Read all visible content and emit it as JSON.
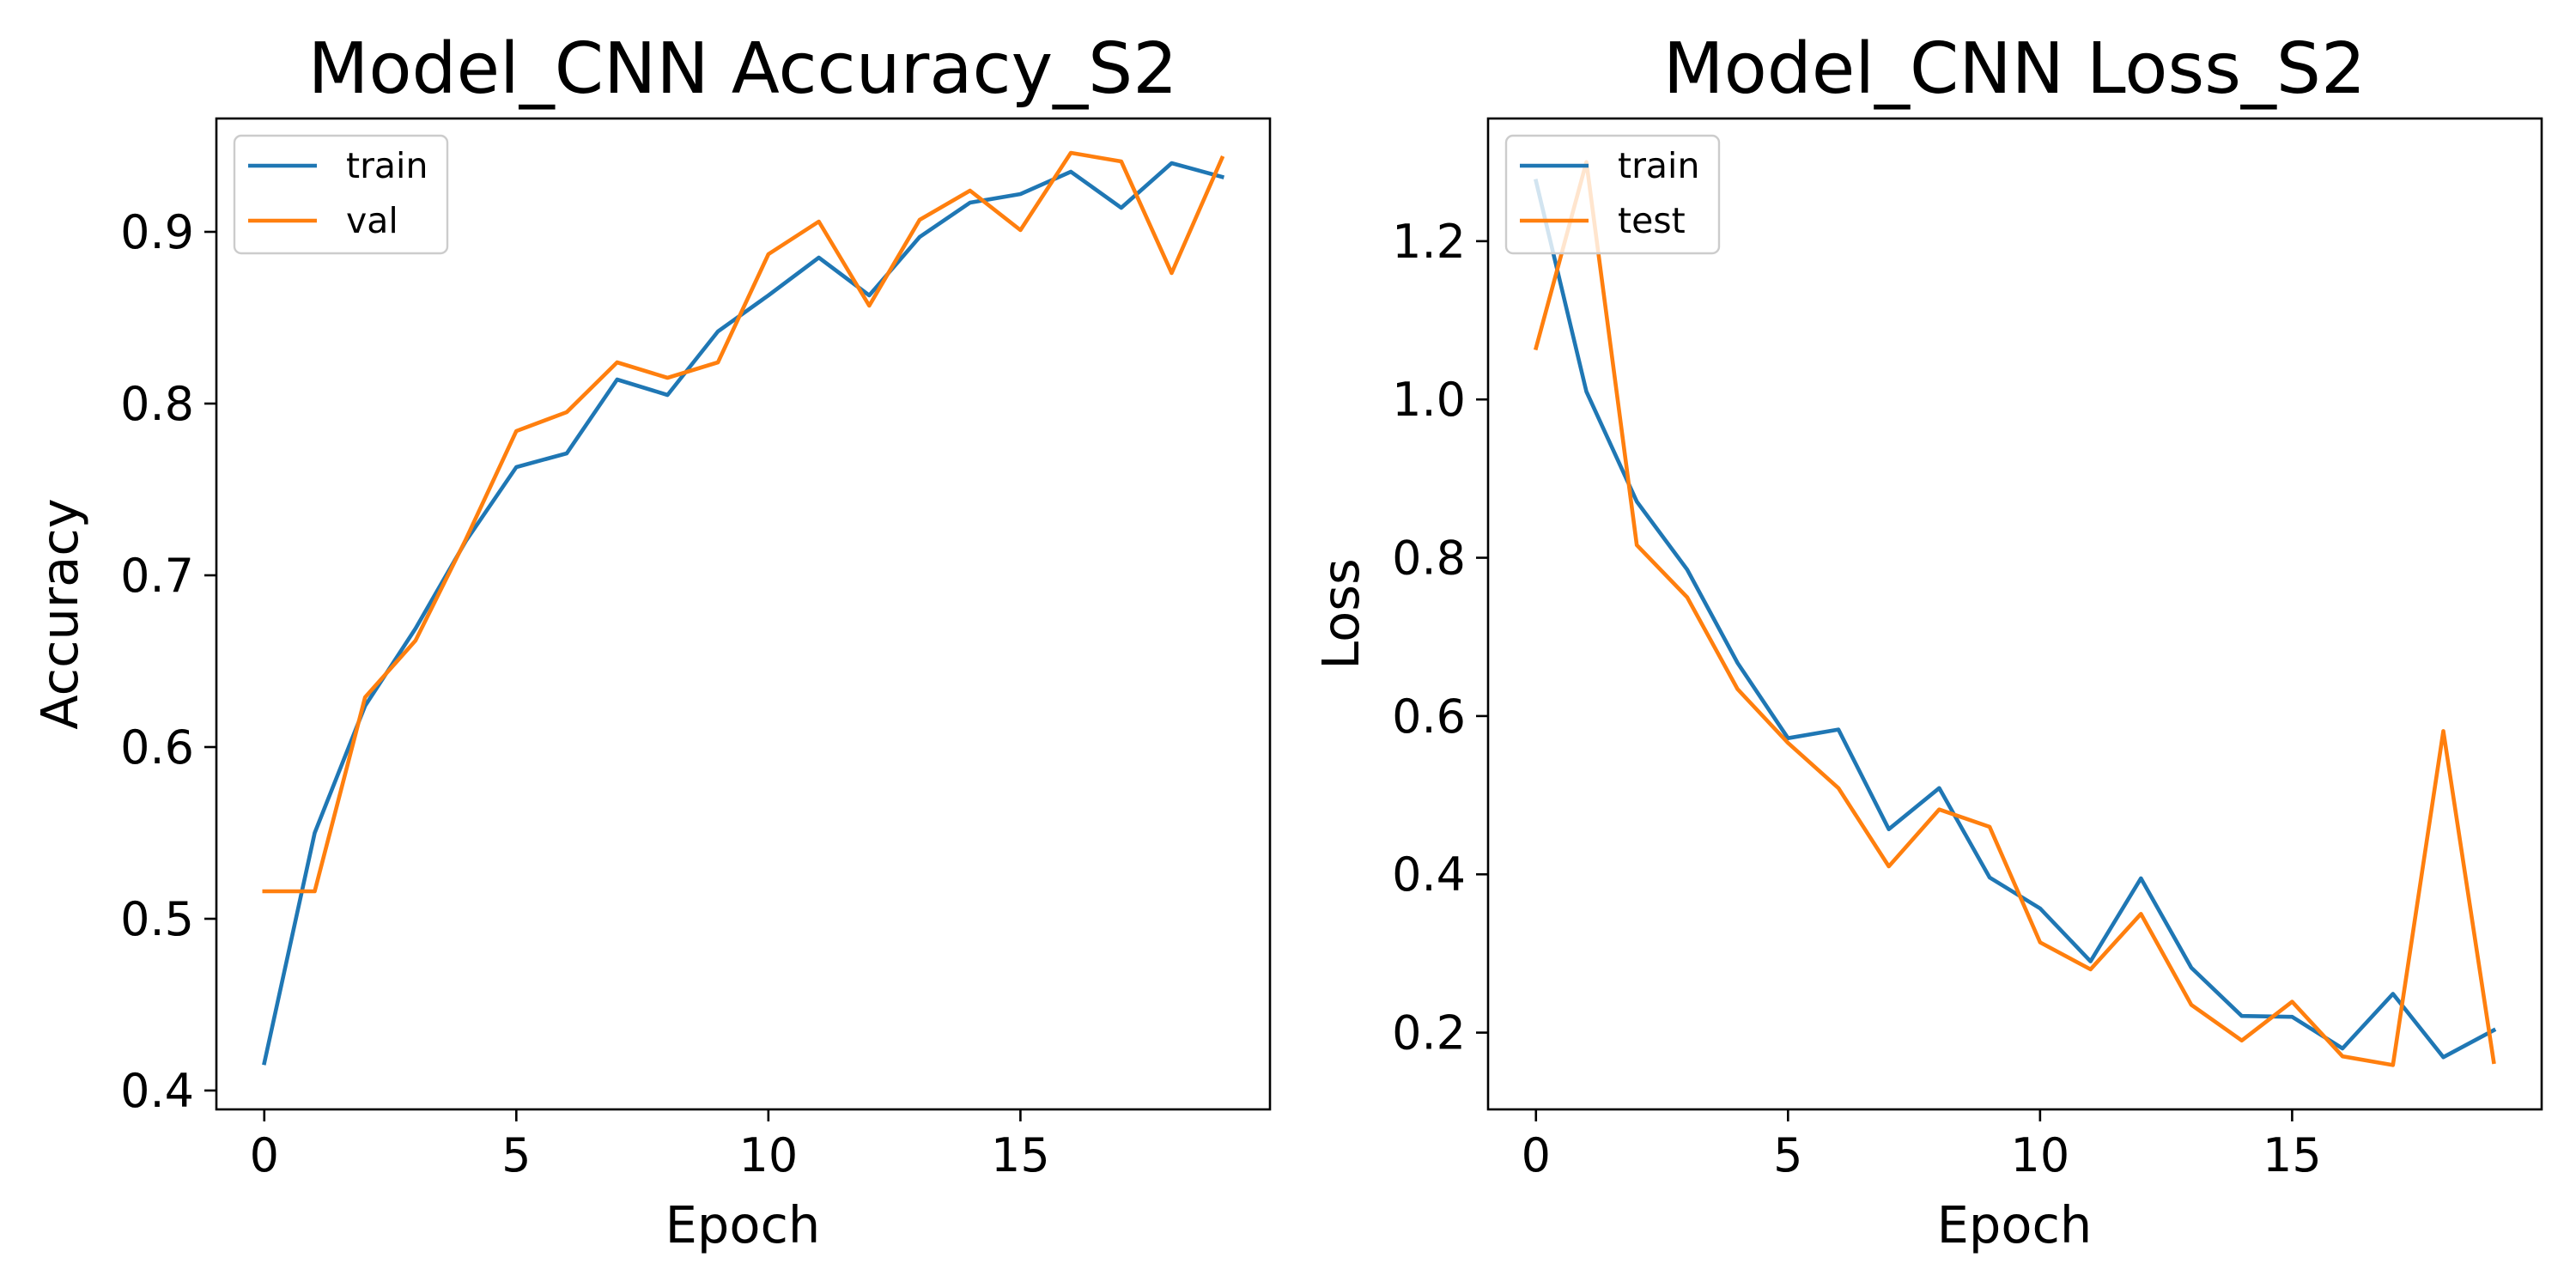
{
  "chart_data": [
    {
      "type": "line",
      "title": "Model_CNN Accuracy_S2",
      "xlabel": "Epoch",
      "ylabel": "Accuracy",
      "xlim": [
        -0.95,
        19.95
      ],
      "ylim": [
        0.389,
        0.966
      ],
      "xticks": [
        0,
        5,
        10,
        15
      ],
      "yticks": [
        0.4,
        0.5,
        0.6,
        0.7,
        0.8,
        0.9
      ],
      "xtick_labels": [
        "0",
        "5",
        "10",
        "15"
      ],
      "ytick_labels": [
        "0.4",
        "0.5",
        "0.6",
        "0.7",
        "0.8",
        "0.9"
      ],
      "legend_position": "upper-left",
      "grid": false,
      "x": [
        0,
        1,
        2,
        3,
        4,
        5,
        6,
        7,
        8,
        9,
        10,
        11,
        12,
        13,
        14,
        15,
        16,
        17,
        18,
        19
      ],
      "series": [
        {
          "name": "train",
          "color": "#1f77b4",
          "values": [
            0.416,
            0.55,
            0.624,
            0.669,
            0.72,
            0.763,
            0.771,
            0.814,
            0.805,
            0.842,
            0.863,
            0.885,
            0.863,
            0.897,
            0.917,
            0.922,
            0.935,
            0.914,
            0.94,
            0.932
          ]
        },
        {
          "name": "val",
          "color": "#ff7f0e",
          "values": [
            0.516,
            0.516,
            0.629,
            0.662,
            0.721,
            0.784,
            0.795,
            0.824,
            0.815,
            0.824,
            0.887,
            0.906,
            0.857,
            0.907,
            0.924,
            0.901,
            0.946,
            0.941,
            0.876,
            0.943
          ]
        }
      ]
    },
    {
      "type": "line",
      "title": "Model_CNN Loss_S2",
      "xlabel": "Epoch",
      "ylabel": "Loss",
      "xlim": [
        -0.95,
        19.95
      ],
      "ylim": [
        0.103,
        1.355
      ],
      "xticks": [
        0,
        5,
        10,
        15
      ],
      "yticks": [
        0.2,
        0.4,
        0.6,
        0.8,
        1.0,
        1.2
      ],
      "xtick_labels": [
        "0",
        "5",
        "10",
        "15"
      ],
      "ytick_labels": [
        "0.2",
        "0.4",
        "0.6",
        "0.8",
        "1.0",
        "1.2"
      ],
      "legend_position": "upper-left",
      "grid": false,
      "x": [
        0,
        1,
        2,
        3,
        4,
        5,
        6,
        7,
        8,
        9,
        10,
        11,
        12,
        13,
        14,
        15,
        16,
        17,
        18,
        19
      ],
      "series": [
        {
          "name": "train",
          "color": "#1f77b4",
          "values": [
            1.276,
            1.01,
            0.871,
            0.785,
            0.667,
            0.572,
            0.583,
            0.457,
            0.509,
            0.396,
            0.357,
            0.29,
            0.395,
            0.282,
            0.221,
            0.22,
            0.18,
            0.249,
            0.169,
            0.203
          ]
        },
        {
          "name": "test",
          "color": "#ff7f0e",
          "values": [
            1.065,
            1.3,
            0.816,
            0.75,
            0.634,
            0.566,
            0.509,
            0.41,
            0.482,
            0.46,
            0.314,
            0.28,
            0.35,
            0.235,
            0.19,
            0.239,
            0.17,
            0.159,
            0.581,
            0.163
          ]
        }
      ]
    }
  ]
}
